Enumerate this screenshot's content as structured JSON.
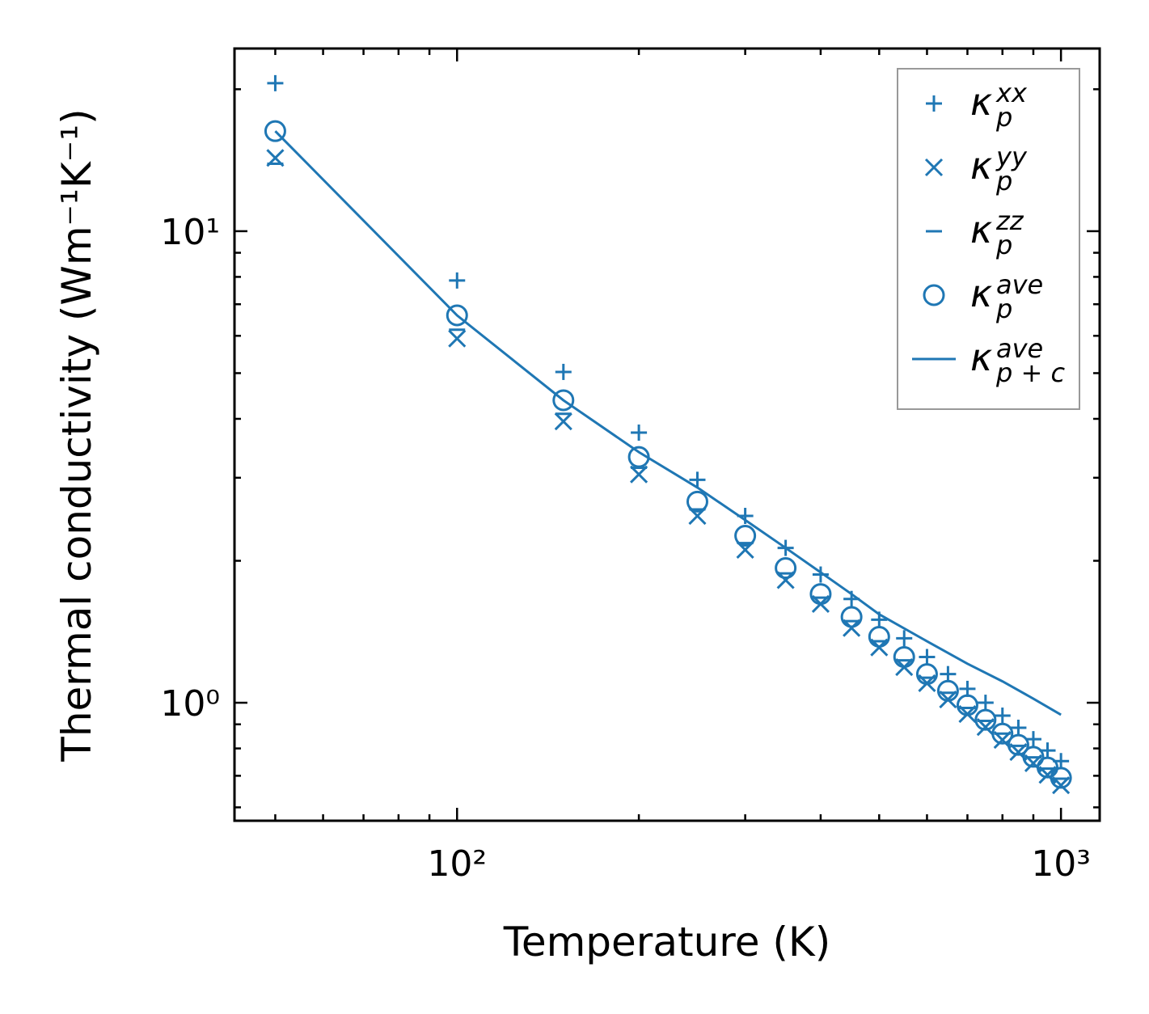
{
  "chart_data": {
    "type": "scatter",
    "title": "",
    "xlabel": "Temperature (K)",
    "ylabel": "Thermal conductivity (Wm⁻¹K⁻¹)",
    "xscale": "log",
    "yscale": "log",
    "xlim": [
      42.8,
      1159
    ],
    "ylim": [
      0.562,
      24.4
    ],
    "grid": false,
    "legend_position": "top-right",
    "color": "#1f77b4",
    "x_ticks": [
      {
        "value": 100,
        "label": "10²"
      },
      {
        "value": 1000,
        "label": "10³"
      }
    ],
    "y_ticks": [
      {
        "value": 1,
        "label": "10⁰"
      },
      {
        "value": 10,
        "label": "10¹"
      }
    ],
    "x": [
      50,
      100,
      150,
      200,
      250,
      300,
      350,
      400,
      450,
      500,
      550,
      600,
      650,
      700,
      750,
      800,
      850,
      900,
      950,
      1000
    ],
    "series": [
      {
        "name": "kappa_p^xx",
        "marker": "plus",
        "label": {
          "base": "κ",
          "sub": "p",
          "sup": "xx"
        },
        "values": [
          20.6,
          7.86,
          5.03,
          3.74,
          2.97,
          2.49,
          2.13,
          1.87,
          1.66,
          1.5,
          1.37,
          1.25,
          1.15,
          1.07,
          1.0,
          0.939,
          0.885,
          0.837,
          0.792,
          0.752
        ]
      },
      {
        "name": "kappa_p^yy",
        "marker": "x",
        "label": {
          "base": "κ",
          "sub": "p",
          "sup": "yy"
        },
        "values": [
          14.3,
          5.92,
          3.95,
          3.05,
          2.49,
          2.11,
          1.82,
          1.62,
          1.44,
          1.31,
          1.19,
          1.1,
          1.016,
          0.946,
          0.888,
          0.834,
          0.786,
          0.744,
          0.703,
          0.668
        ]
      },
      {
        "name": "kappa_p^zz",
        "marker": "hline",
        "label": {
          "base": "κ",
          "sub": "p",
          "sup": "zz"
        },
        "values": [
          13.9,
          6.18,
          4.1,
          3.15,
          2.57,
          2.18,
          1.88,
          1.67,
          1.49,
          1.35,
          1.23,
          1.13,
          1.05,
          0.975,
          0.915,
          0.86,
          0.81,
          0.766,
          0.725,
          0.69
        ]
      },
      {
        "name": "kappa_p^ave",
        "marker": "circle",
        "label": {
          "base": "κ",
          "sub": "p",
          "sup": "ave"
        },
        "values": [
          16.3,
          6.63,
          4.38,
          3.32,
          2.67,
          2.26,
          1.93,
          1.7,
          1.52,
          1.38,
          1.25,
          1.15,
          1.06,
          0.988,
          0.92,
          0.86,
          0.814,
          0.768,
          0.729,
          0.693
        ]
      },
      {
        "name": "kappa_p+c^ave",
        "marker": "line",
        "label": {
          "base": "κ",
          "sub": "p + c",
          "sup": "ave"
        },
        "x": [
          50,
          100,
          150,
          200,
          250,
          300,
          350,
          400,
          450,
          500,
          600,
          700,
          800,
          900,
          1000
        ],
        "values": [
          16.3,
          6.63,
          4.38,
          3.4,
          2.86,
          2.44,
          2.13,
          1.89,
          1.7,
          1.54,
          1.35,
          1.21,
          1.11,
          1.02,
          0.943
        ]
      }
    ]
  }
}
